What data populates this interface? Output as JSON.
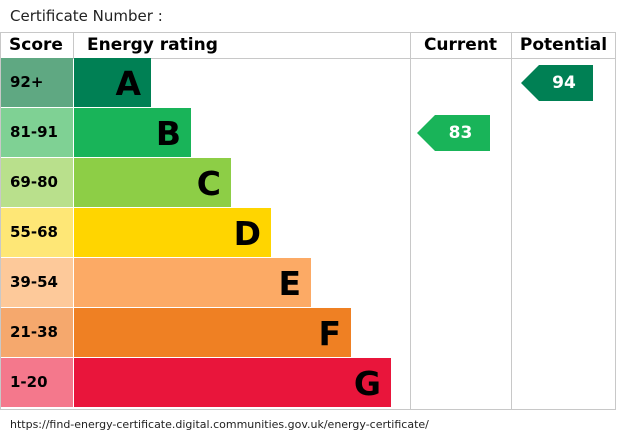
{
  "certificate_label": "Certificate Number :",
  "footer_url": "https://find-energy-certificate.digital.communities.gov.uk/energy-certificate/",
  "chart_data": {
    "type": "table",
    "headers": {
      "score": "Score",
      "rating": "Energy rating",
      "current": "Current",
      "potential": "Potential"
    },
    "bands": [
      {
        "letter": "A",
        "range": "92+",
        "score_color": "#5fa882",
        "bar_color": "#008054"
      },
      {
        "letter": "B",
        "range": "81-91",
        "score_color": "#7fd194",
        "bar_color": "#19b459"
      },
      {
        "letter": "C",
        "range": "69-80",
        "score_color": "#b9e08c",
        "bar_color": "#8dce46"
      },
      {
        "letter": "D",
        "range": "55-68",
        "score_color": "#fee776",
        "bar_color": "#ffd500"
      },
      {
        "letter": "E",
        "range": "39-54",
        "score_color": "#fdc99a",
        "bar_color": "#fcaa65"
      },
      {
        "letter": "F",
        "range": "21-38",
        "score_color": "#f5a86d",
        "bar_color": "#ef8023"
      },
      {
        "letter": "G",
        "range": "1-20",
        "score_color": "#f4788c",
        "bar_color": "#e9153b"
      }
    ],
    "current": {
      "value": 83,
      "band": "B",
      "color": "#19b459"
    },
    "potential": {
      "value": 94,
      "band": "A",
      "color": "#008054"
    }
  }
}
